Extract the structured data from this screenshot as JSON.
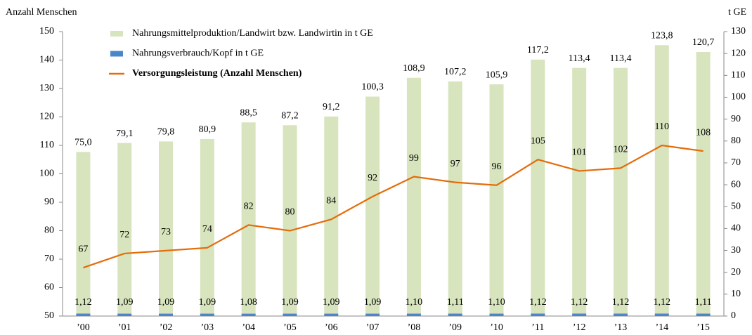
{
  "chart_data": {
    "type": "bar",
    "ylabel": "Anzahl Menschen",
    "y2label": "t GE",
    "categories": [
      "’00",
      "’01",
      "’02",
      "’03",
      "’04",
      "’05",
      "’06",
      "’07",
      "’08",
      "’09",
      "’10",
      "’11",
      "’12",
      "’13",
      "’14",
      "’15"
    ],
    "series": [
      {
        "name": "Nahrungsmittelproduktion/Landwirt bzw. Landwirtin in t GE",
        "type": "bar",
        "axis": "y2",
        "color": "#d7e4bd",
        "values": [
          75.0,
          79.1,
          79.8,
          80.9,
          88.5,
          87.2,
          91.2,
          100.3,
          108.9,
          107.2,
          105.9,
          117.2,
          113.4,
          113.4,
          123.8,
          120.7
        ],
        "value_labels": [
          "75,0",
          "79,1",
          "79,8",
          "80,9",
          "88,5",
          "87,2",
          "91,2",
          "100,3",
          "108,9",
          "107,2",
          "105,9",
          "117,2",
          "113,4",
          "113,4",
          "123,8",
          "120,7"
        ]
      },
      {
        "name": "Nahrungsverbrauch/Kopf in t GE",
        "type": "bar",
        "axis": "y2",
        "color": "#4a86c8",
        "values": [
          1.12,
          1.09,
          1.09,
          1.09,
          1.08,
          1.09,
          1.09,
          1.09,
          1.1,
          1.11,
          1.1,
          1.12,
          1.12,
          1.12,
          1.12,
          1.11
        ],
        "value_labels": [
          "1,12",
          "1,09",
          "1,09",
          "1,09",
          "1,08",
          "1,09",
          "1,09",
          "1,09",
          "1,10",
          "1,11",
          "1,10",
          "1,12",
          "1,12",
          "1,12",
          "1,12",
          "1,11"
        ]
      },
      {
        "name": "Versorgungsleistung (Anzahl Menschen)",
        "type": "line",
        "color": "#e46c0a",
        "values": [
          67,
          72,
          73,
          74,
          82,
          80,
          84,
          92,
          99,
          97,
          96,
          105,
          101,
          102,
          110,
          108
        ]
      }
    ],
    "ylim": [
      50,
      150
    ],
    "yticks": [
      50,
      60,
      70,
      80,
      90,
      100,
      110,
      120,
      130,
      140,
      150
    ],
    "y2lim": [
      0,
      130
    ],
    "y2ticks": [
      0,
      10,
      20,
      30,
      40,
      50,
      60,
      70,
      80,
      90,
      100,
      110,
      120,
      130
    ],
    "legend": "top-left",
    "grid": false
  }
}
